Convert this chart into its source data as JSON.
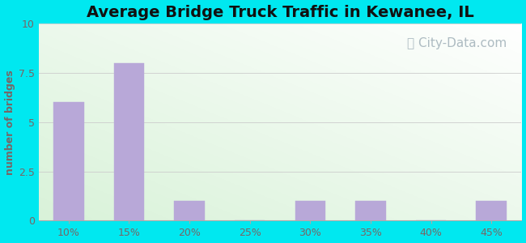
{
  "title": "Average Bridge Truck Traffic in Kewanee, IL",
  "categories": [
    "10%",
    "15%",
    "20%",
    "25%",
    "30%",
    "35%",
    "40%",
    "45%"
  ],
  "values": [
    6,
    8,
    1,
    0,
    1,
    1,
    0,
    1
  ],
  "bar_color": "#b8a8d8",
  "bar_edgecolor": "#b8a8d8",
  "ylabel": "number of bridges",
  "ylim": [
    0,
    10
  ],
  "yticks": [
    0,
    2.5,
    5,
    7.5,
    10
  ],
  "title_fontsize": 14,
  "axis_label_fontsize": 9,
  "tick_fontsize": 9,
  "bg_outer": "#00e8f0",
  "watermark_text": "City-Data.com",
  "watermark_color": "#a0b0b8",
  "watermark_fontsize": 11,
  "label_color": "#776666",
  "tick_color": "#776666"
}
